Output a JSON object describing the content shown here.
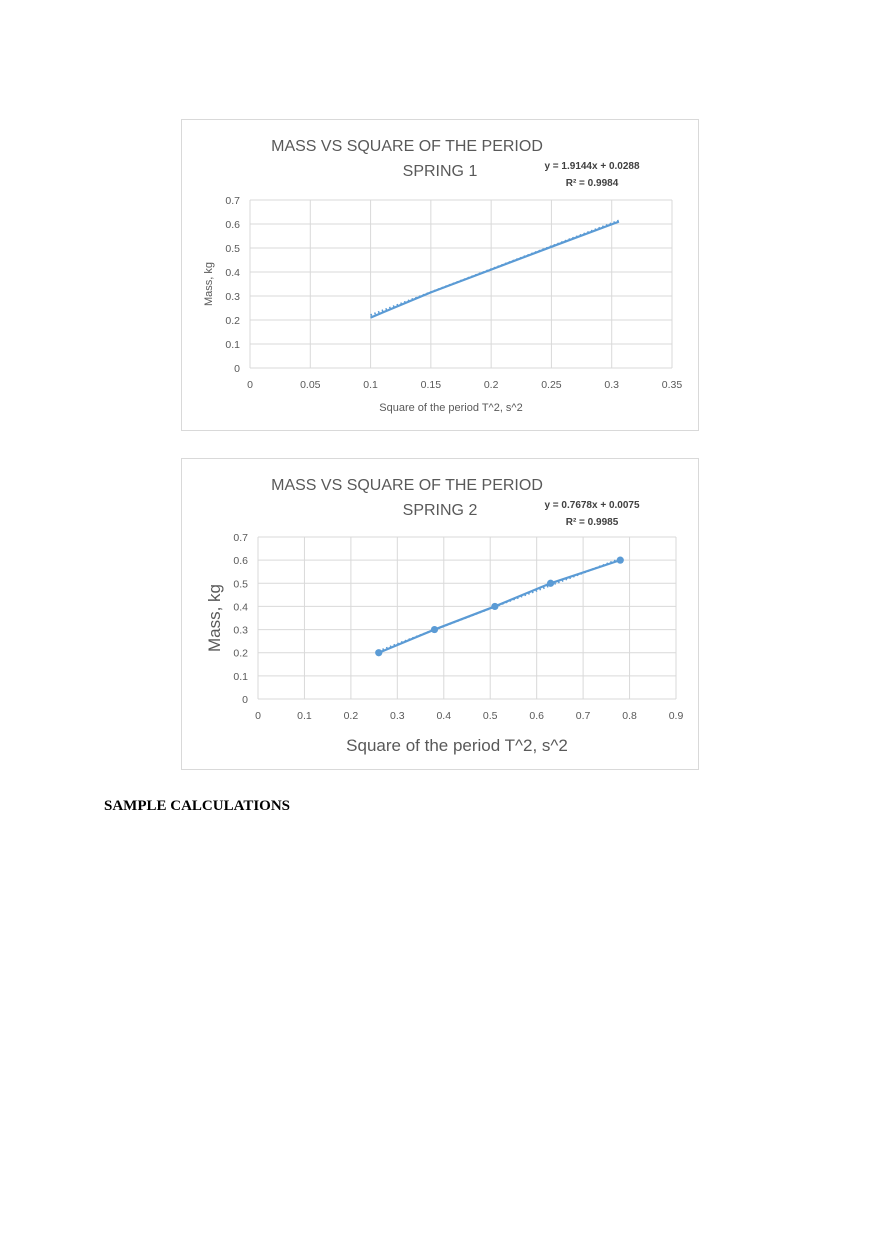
{
  "document": {
    "section_heading": "SAMPLE CALCULATIONS"
  },
  "colors": {
    "series": "#5b9bd5",
    "grid": "#d9d9d9",
    "text": "#595959",
    "frame": "#d9d9d9"
  },
  "chart_data": [
    {
      "type": "line",
      "title": "MASS VS SQUARE OF THE PERIOD",
      "subtitle": "SPRING 1",
      "equation": "y = 1.9144x + 0.0288",
      "r_squared": "R² = 0.9984",
      "xlabel": "Square of the period T^2, s^2",
      "ylabel": "Mass, kg",
      "xlim": [
        0,
        0.35
      ],
      "ylim": [
        0,
        0.7
      ],
      "xticks": [
        "0",
        "0.05",
        "0.1",
        "0.15",
        "0.2",
        "0.25",
        "0.3",
        "0.35"
      ],
      "yticks": [
        "0",
        "0.1",
        "0.2",
        "0.3",
        "0.4",
        "0.5",
        "0.6",
        "0.7"
      ],
      "grid": true,
      "markers": false,
      "series": [
        {
          "x": [
            0.1,
            0.15,
            0.2,
            0.25,
            0.306
          ],
          "y": [
            0.21,
            0.315,
            0.41,
            0.505,
            0.61
          ]
        }
      ],
      "trendline": {
        "slope": 1.9144,
        "intercept": 0.0288,
        "x_range": [
          0.1,
          0.306
        ]
      }
    },
    {
      "type": "line",
      "title": "MASS VS SQUARE OF THE PERIOD",
      "subtitle": "SPRING 2",
      "equation": "y = 0.7678x + 0.0075",
      "r_squared": "R² = 0.9985",
      "xlabel": "Square of the period T^2, s^2",
      "ylabel": "Mass, kg",
      "xlim": [
        0,
        0.9
      ],
      "ylim": [
        0,
        0.7
      ],
      "xticks": [
        "0",
        "0.1",
        "0.2",
        "0.3",
        "0.4",
        "0.5",
        "0.6",
        "0.7",
        "0.8",
        "0.9"
      ],
      "yticks": [
        "0",
        "0.1",
        "0.2",
        "0.3",
        "0.4",
        "0.5",
        "0.6",
        "0.7"
      ],
      "grid": true,
      "markers": true,
      "series": [
        {
          "x": [
            0.26,
            0.38,
            0.51,
            0.63,
            0.78
          ],
          "y": [
            0.2,
            0.3,
            0.4,
            0.5,
            0.6
          ]
        }
      ],
      "trendline": {
        "slope": 0.7678,
        "intercept": 0.0075,
        "x_range": [
          0.26,
          0.78
        ]
      }
    }
  ]
}
